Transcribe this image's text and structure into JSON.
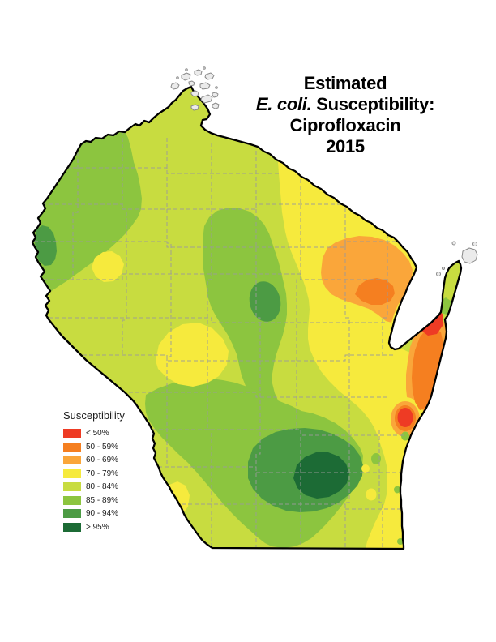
{
  "title": {
    "line1": "Estimated",
    "line2_italic": "E. coli.",
    "line2_rest": " Susceptibility:",
    "line3": "Ciprofloxacin",
    "line4": "2015"
  },
  "legend": {
    "title": "Susceptibility",
    "items": [
      {
        "label": "< 50%",
        "color_key": "red_lt50"
      },
      {
        "label": "50 - 59%",
        "color_key": "orange_50_59"
      },
      {
        "label": "60 - 69%",
        "color_key": "amber_60_69"
      },
      {
        "label": "70 - 79%",
        "color_key": "yellow_70_79"
      },
      {
        "label": "80 - 84%",
        "color_key": "yellowgreen_80_84"
      },
      {
        "label": "85 - 89%",
        "color_key": "green_85_89"
      },
      {
        "label": "90 - 94%",
        "color_key": "green_90_94"
      },
      {
        "label": "> 95%",
        "color_key": "darkgreen_gt95"
      }
    ]
  },
  "palette": {
    "red_lt50": "#ee3b24",
    "orange_50_59": "#f57f20",
    "amber_60_69": "#faa63a",
    "yellow_70_79": "#f6ea3d",
    "yellowgreen_80_84": "#c8dc40",
    "green_85_89": "#8cc53f",
    "green_90_94": "#4c9b44",
    "darkgreen_gt95": "#1c6b35",
    "state_outline": "#000000",
    "county_line": "#9b9b9b",
    "island_fill": "#ebebeb",
    "island_stroke": "#8a8a8a",
    "background": "#ffffff"
  }
}
